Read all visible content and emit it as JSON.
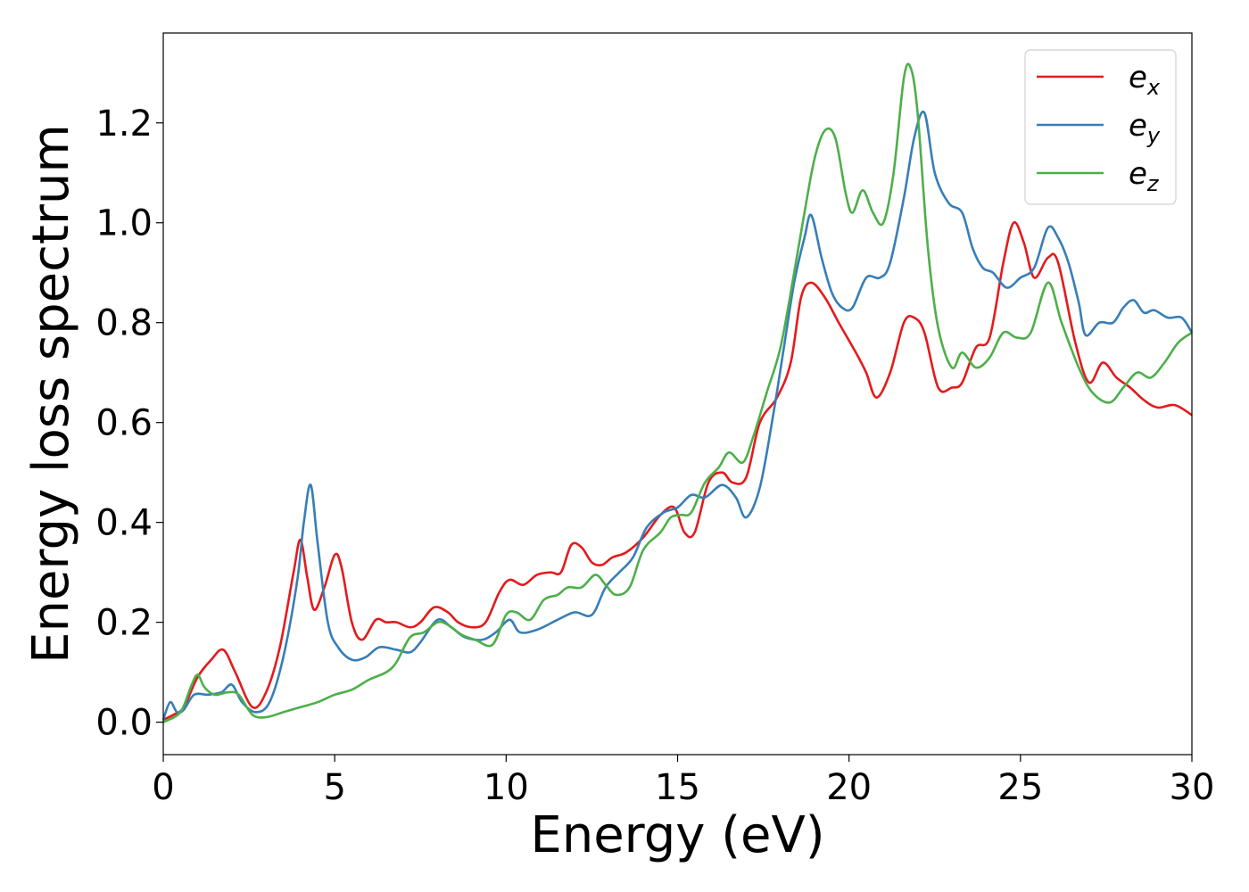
{
  "chart_data": {
    "type": "line",
    "title": "",
    "xlabel": "Energy (eV)",
    "ylabel": "Energy loss spectrum",
    "xlim": [
      0,
      30
    ],
    "ylim": [
      -0.065,
      1.38
    ],
    "xticks": [
      0,
      5,
      10,
      15,
      20,
      25,
      30
    ],
    "yticks": [
      0.0,
      0.2,
      0.4,
      0.6,
      0.8,
      1.0,
      1.2
    ],
    "xtick_labels": [
      "0",
      "5",
      "10",
      "15",
      "20",
      "25",
      "30"
    ],
    "ytick_labels": [
      "0.0",
      "0.2",
      "0.4",
      "0.6",
      "0.8",
      "1.0",
      "1.2"
    ],
    "grid": false,
    "legend_position": "top-right",
    "series": [
      {
        "name": "e",
        "subscript": "x",
        "color": "#e41a1c",
        "points": [
          [
            0,
            0.005
          ],
          [
            0.3,
            0.015
          ],
          [
            0.6,
            0.03
          ],
          [
            1.0,
            0.09
          ],
          [
            1.4,
            0.125
          ],
          [
            1.75,
            0.145
          ],
          [
            2.1,
            0.1
          ],
          [
            2.6,
            0.03
          ],
          [
            3.0,
            0.06
          ],
          [
            3.4,
            0.15
          ],
          [
            3.8,
            0.3
          ],
          [
            4.0,
            0.365
          ],
          [
            4.2,
            0.29
          ],
          [
            4.4,
            0.225
          ],
          [
            4.7,
            0.27
          ],
          [
            5.0,
            0.335
          ],
          [
            5.2,
            0.31
          ],
          [
            5.5,
            0.2
          ],
          [
            5.8,
            0.165
          ],
          [
            6.2,
            0.205
          ],
          [
            6.5,
            0.2
          ],
          [
            6.8,
            0.2
          ],
          [
            7.2,
            0.19
          ],
          [
            7.5,
            0.2
          ],
          [
            7.9,
            0.23
          ],
          [
            8.3,
            0.22
          ],
          [
            8.6,
            0.2
          ],
          [
            9.0,
            0.19
          ],
          [
            9.4,
            0.2
          ],
          [
            9.8,
            0.26
          ],
          [
            10.1,
            0.285
          ],
          [
            10.5,
            0.275
          ],
          [
            10.9,
            0.295
          ],
          [
            11.3,
            0.3
          ],
          [
            11.6,
            0.3
          ],
          [
            11.9,
            0.355
          ],
          [
            12.2,
            0.35
          ],
          [
            12.5,
            0.32
          ],
          [
            12.8,
            0.315
          ],
          [
            13.1,
            0.33
          ],
          [
            13.5,
            0.34
          ],
          [
            14.0,
            0.37
          ],
          [
            14.5,
            0.415
          ],
          [
            14.9,
            0.43
          ],
          [
            15.2,
            0.38
          ],
          [
            15.5,
            0.38
          ],
          [
            15.9,
            0.48
          ],
          [
            16.3,
            0.5
          ],
          [
            16.6,
            0.48
          ],
          [
            17.0,
            0.49
          ],
          [
            17.4,
            0.6
          ],
          [
            17.9,
            0.65
          ],
          [
            18.3,
            0.72
          ],
          [
            18.6,
            0.85
          ],
          [
            18.9,
            0.88
          ],
          [
            19.3,
            0.85
          ],
          [
            19.7,
            0.8
          ],
          [
            20.2,
            0.74
          ],
          [
            20.5,
            0.7
          ],
          [
            20.8,
            0.65
          ],
          [
            21.2,
            0.7
          ],
          [
            21.6,
            0.8
          ],
          [
            21.9,
            0.81
          ],
          [
            22.2,
            0.78
          ],
          [
            22.6,
            0.67
          ],
          [
            23.0,
            0.67
          ],
          [
            23.3,
            0.68
          ],
          [
            23.7,
            0.75
          ],
          [
            24.1,
            0.77
          ],
          [
            24.5,
            0.92
          ],
          [
            24.8,
            1.0
          ],
          [
            25.1,
            0.96
          ],
          [
            25.4,
            0.89
          ],
          [
            25.8,
            0.93
          ],
          [
            26.1,
            0.92
          ],
          [
            26.6,
            0.76
          ],
          [
            27.0,
            0.68
          ],
          [
            27.4,
            0.72
          ],
          [
            27.8,
            0.69
          ],
          [
            28.2,
            0.67
          ],
          [
            28.6,
            0.645
          ],
          [
            29.0,
            0.63
          ],
          [
            29.5,
            0.635
          ],
          [
            30.0,
            0.615
          ]
        ]
      },
      {
        "name": "e",
        "subscript": "y",
        "color": "#377eb8",
        "points": [
          [
            0,
            0.005
          ],
          [
            0.2,
            0.04
          ],
          [
            0.4,
            0.02
          ],
          [
            0.6,
            0.025
          ],
          [
            0.9,
            0.055
          ],
          [
            1.3,
            0.055
          ],
          [
            1.7,
            0.06
          ],
          [
            2.0,
            0.075
          ],
          [
            2.3,
            0.04
          ],
          [
            2.7,
            0.02
          ],
          [
            3.1,
            0.04
          ],
          [
            3.5,
            0.13
          ],
          [
            3.9,
            0.28
          ],
          [
            4.1,
            0.4
          ],
          [
            4.3,
            0.475
          ],
          [
            4.5,
            0.36
          ],
          [
            4.8,
            0.2
          ],
          [
            5.1,
            0.15
          ],
          [
            5.5,
            0.125
          ],
          [
            5.9,
            0.13
          ],
          [
            6.3,
            0.15
          ],
          [
            6.8,
            0.145
          ],
          [
            7.2,
            0.14
          ],
          [
            7.5,
            0.16
          ],
          [
            8.0,
            0.205
          ],
          [
            8.4,
            0.19
          ],
          [
            8.8,
            0.17
          ],
          [
            9.3,
            0.165
          ],
          [
            9.7,
            0.18
          ],
          [
            10.1,
            0.205
          ],
          [
            10.4,
            0.18
          ],
          [
            10.9,
            0.185
          ],
          [
            11.5,
            0.205
          ],
          [
            12.0,
            0.22
          ],
          [
            12.5,
            0.215
          ],
          [
            12.9,
            0.27
          ],
          [
            13.3,
            0.3
          ],
          [
            13.7,
            0.33
          ],
          [
            14.1,
            0.39
          ],
          [
            14.6,
            0.42
          ],
          [
            15.0,
            0.43
          ],
          [
            15.4,
            0.455
          ],
          [
            15.8,
            0.45
          ],
          [
            16.3,
            0.475
          ],
          [
            16.7,
            0.45
          ],
          [
            17.0,
            0.41
          ],
          [
            17.4,
            0.47
          ],
          [
            17.8,
            0.62
          ],
          [
            18.1,
            0.75
          ],
          [
            18.4,
            0.88
          ],
          [
            18.7,
            0.97
          ],
          [
            18.9,
            1.015
          ],
          [
            19.2,
            0.93
          ],
          [
            19.5,
            0.86
          ],
          [
            19.8,
            0.83
          ],
          [
            20.1,
            0.83
          ],
          [
            20.5,
            0.89
          ],
          [
            20.9,
            0.89
          ],
          [
            21.2,
            0.92
          ],
          [
            21.6,
            1.05
          ],
          [
            21.9,
            1.17
          ],
          [
            22.2,
            1.22
          ],
          [
            22.5,
            1.1
          ],
          [
            22.9,
            1.04
          ],
          [
            23.3,
            1.02
          ],
          [
            23.6,
            0.95
          ],
          [
            23.9,
            0.91
          ],
          [
            24.2,
            0.9
          ],
          [
            24.6,
            0.87
          ],
          [
            25.0,
            0.89
          ],
          [
            25.4,
            0.91
          ],
          [
            25.8,
            0.99
          ],
          [
            26.1,
            0.97
          ],
          [
            26.4,
            0.92
          ],
          [
            26.7,
            0.84
          ],
          [
            26.9,
            0.775
          ],
          [
            27.3,
            0.8
          ],
          [
            27.7,
            0.8
          ],
          [
            28.0,
            0.83
          ],
          [
            28.3,
            0.845
          ],
          [
            28.6,
            0.82
          ],
          [
            28.9,
            0.825
          ],
          [
            29.3,
            0.81
          ],
          [
            29.7,
            0.81
          ],
          [
            30.0,
            0.78
          ]
        ]
      },
      {
        "name": "e",
        "subscript": "z",
        "color": "#4daf4a",
        "points": [
          [
            0,
            0.0
          ],
          [
            0.5,
            0.02
          ],
          [
            0.8,
            0.07
          ],
          [
            1.0,
            0.095
          ],
          [
            1.2,
            0.07
          ],
          [
            1.5,
            0.055
          ],
          [
            1.9,
            0.06
          ],
          [
            2.2,
            0.055
          ],
          [
            2.6,
            0.015
          ],
          [
            3.0,
            0.01
          ],
          [
            3.5,
            0.02
          ],
          [
            4.0,
            0.03
          ],
          [
            4.5,
            0.04
          ],
          [
            5.0,
            0.055
          ],
          [
            5.5,
            0.065
          ],
          [
            6.0,
            0.085
          ],
          [
            6.5,
            0.1
          ],
          [
            6.8,
            0.12
          ],
          [
            7.2,
            0.17
          ],
          [
            7.6,
            0.18
          ],
          [
            8.0,
            0.2
          ],
          [
            8.3,
            0.195
          ],
          [
            8.7,
            0.175
          ],
          [
            9.1,
            0.165
          ],
          [
            9.6,
            0.155
          ],
          [
            10.0,
            0.215
          ],
          [
            10.3,
            0.22
          ],
          [
            10.7,
            0.205
          ],
          [
            11.1,
            0.245
          ],
          [
            11.5,
            0.255
          ],
          [
            11.8,
            0.27
          ],
          [
            12.2,
            0.27
          ],
          [
            12.6,
            0.295
          ],
          [
            12.9,
            0.275
          ],
          [
            13.2,
            0.255
          ],
          [
            13.6,
            0.27
          ],
          [
            14.0,
            0.345
          ],
          [
            14.5,
            0.38
          ],
          [
            14.8,
            0.41
          ],
          [
            15.1,
            0.415
          ],
          [
            15.4,
            0.42
          ],
          [
            15.8,
            0.48
          ],
          [
            16.2,
            0.51
          ],
          [
            16.5,
            0.54
          ],
          [
            16.9,
            0.52
          ],
          [
            17.2,
            0.57
          ],
          [
            17.6,
            0.66
          ],
          [
            18.0,
            0.75
          ],
          [
            18.4,
            0.9
          ],
          [
            18.7,
            1.02
          ],
          [
            19.0,
            1.13
          ],
          [
            19.3,
            1.185
          ],
          [
            19.6,
            1.17
          ],
          [
            19.9,
            1.06
          ],
          [
            20.1,
            1.02
          ],
          [
            20.4,
            1.065
          ],
          [
            20.7,
            1.02
          ],
          [
            21.0,
            1.0
          ],
          [
            21.3,
            1.1
          ],
          [
            21.6,
            1.29
          ],
          [
            21.8,
            1.31
          ],
          [
            22.0,
            1.22
          ],
          [
            22.3,
            0.95
          ],
          [
            22.6,
            0.79
          ],
          [
            23.0,
            0.71
          ],
          [
            23.3,
            0.74
          ],
          [
            23.7,
            0.71
          ],
          [
            24.1,
            0.73
          ],
          [
            24.5,
            0.78
          ],
          [
            24.9,
            0.77
          ],
          [
            25.3,
            0.78
          ],
          [
            25.8,
            0.88
          ],
          [
            26.2,
            0.8
          ],
          [
            26.7,
            0.71
          ],
          [
            27.1,
            0.66
          ],
          [
            27.6,
            0.64
          ],
          [
            28.0,
            0.67
          ],
          [
            28.4,
            0.7
          ],
          [
            28.8,
            0.69
          ],
          [
            29.2,
            0.72
          ],
          [
            29.6,
            0.76
          ],
          [
            30.0,
            0.78
          ]
        ]
      }
    ]
  }
}
